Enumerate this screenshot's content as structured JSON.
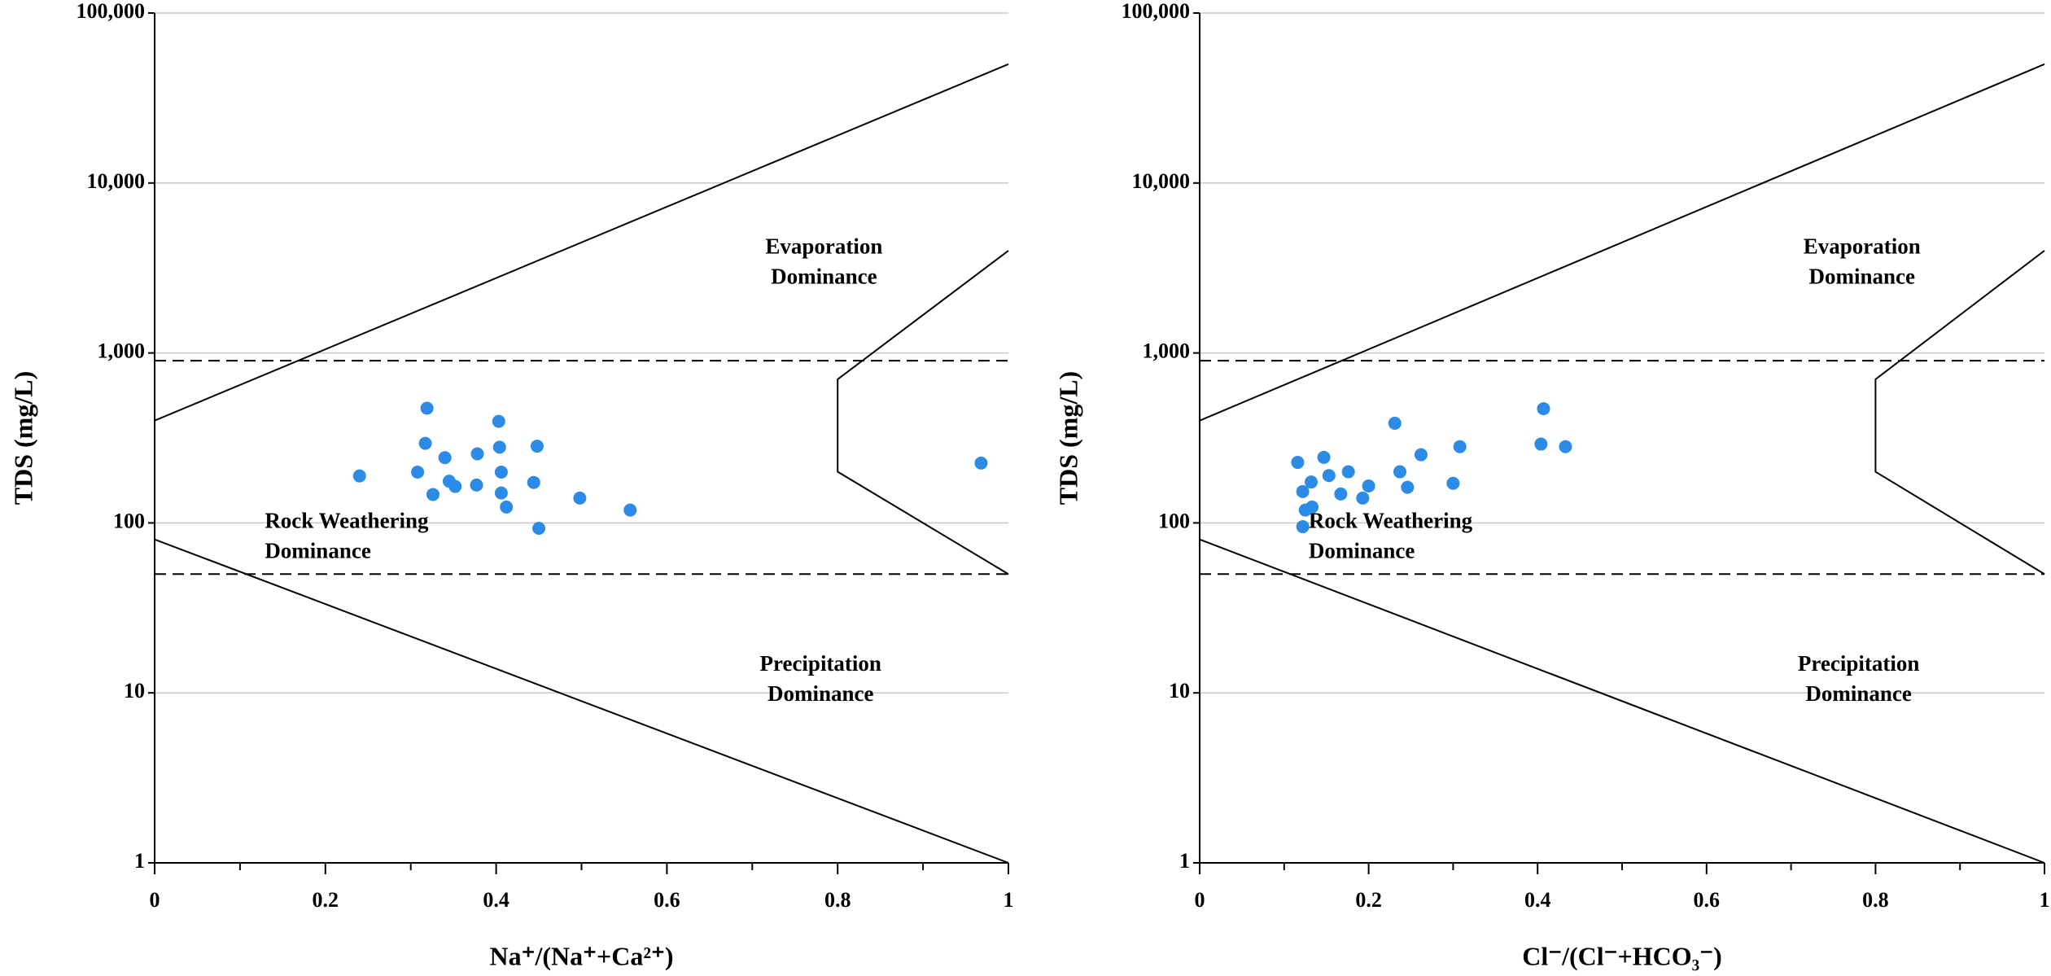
{
  "chart_data": [
    {
      "type": "scatter",
      "xlabel": "Na⁺/(Na⁺+Ca²⁺)",
      "ylabel": "TDS (mg/L)",
      "x": [
        0.319,
        0.317,
        0.403,
        0.404,
        0.448,
        0.34,
        0.378,
        0.24,
        0.308,
        0.406,
        0.345,
        0.352,
        0.377,
        0.444,
        0.326,
        0.406,
        0.412,
        0.498,
        0.557,
        0.45,
        0.968
      ],
      "values": [
        473,
        294,
        396,
        279,
        283,
        242,
        255,
        189,
        199,
        199,
        176,
        164,
        167,
        173,
        147,
        150,
        124,
        140,
        119,
        93,
        225
      ],
      "color": "#2b8be6",
      "xlim": [
        0,
        1
      ],
      "xticks": [
        0,
        0.2,
        0.4,
        0.6,
        0.8,
        1
      ],
      "xticks_minor": [
        0.1,
        0.3,
        0.5,
        0.7,
        0.9
      ],
      "ylim": [
        1,
        100000
      ],
      "log_y": true,
      "grid": true,
      "yticks": [
        1,
        10,
        100,
        {
          "value": 1000,
          "label": "1,000"
        },
        {
          "value": 10000,
          "label": "10,000"
        },
        {
          "value": 100000,
          "label": "100,000"
        }
      ],
      "reference_lines": [
        900,
        50
      ],
      "boundaries": [
        {
          "x": [
            0,
            1
          ],
          "y": [
            400,
            50000
          ]
        },
        {
          "x": [
            0,
            1
          ],
          "y": [
            80,
            1
          ]
        },
        {
          "x": [
            1,
            0.8,
            0.8,
            1
          ],
          "y": [
            4000,
            700,
            200,
            50
          ]
        }
      ],
      "annotations": [
        [
          "Evaporation",
          "Dominance"
        ],
        [
          "Rock Weathering",
          "Dominance"
        ],
        [
          "Precipitation",
          "Dominance"
        ]
      ]
    },
    {
      "type": "scatter",
      "xlabel": "Cl⁻/(Cl⁻+HCO₃⁻)",
      "ylabel": "TDS (mg/L)",
      "x": [
        0.407,
        0.231,
        0.404,
        0.433,
        0.308,
        0.262,
        0.147,
        0.116,
        0.176,
        0.237,
        0.153,
        0.132,
        0.2,
        0.246,
        0.3,
        0.122,
        0.167,
        0.193,
        0.133,
        0.125,
        0.122
      ],
      "values": [
        470,
        386,
        291,
        281,
        281,
        252,
        243,
        227,
        200,
        200,
        190,
        174,
        165,
        162,
        171,
        153,
        148,
        140,
        124,
        119,
        95
      ],
      "color": "#2b8be6",
      "xlim": [
        0,
        1
      ],
      "xticks": [
        0,
        0.2,
        0.4,
        0.6,
        0.8,
        1
      ],
      "xticks_minor": [
        0.1,
        0.3,
        0.5,
        0.7,
        0.9
      ],
      "ylim": [
        1,
        100000
      ],
      "log_y": true,
      "grid": true,
      "yticks": [
        1,
        10,
        100,
        {
          "value": 1000,
          "label": "1,000"
        },
        {
          "value": 10000,
          "label": "10,000"
        },
        {
          "value": 100000,
          "label": "100,000"
        }
      ],
      "reference_lines": [
        900,
        50
      ],
      "boundaries": [
        {
          "x": [
            0,
            1
          ],
          "y": [
            400,
            50000
          ]
        },
        {
          "x": [
            0,
            1
          ],
          "y": [
            80,
            1
          ]
        },
        {
          "x": [
            1,
            0.8,
            0.8,
            1
          ],
          "y": [
            4000,
            700,
            200,
            50
          ]
        }
      ],
      "annotations": [
        [
          "Evaporation",
          "Dominance"
        ],
        [
          "Rock Weathering",
          "Dominance"
        ],
        [
          "Precipitation",
          "Dominance"
        ]
      ]
    }
  ]
}
